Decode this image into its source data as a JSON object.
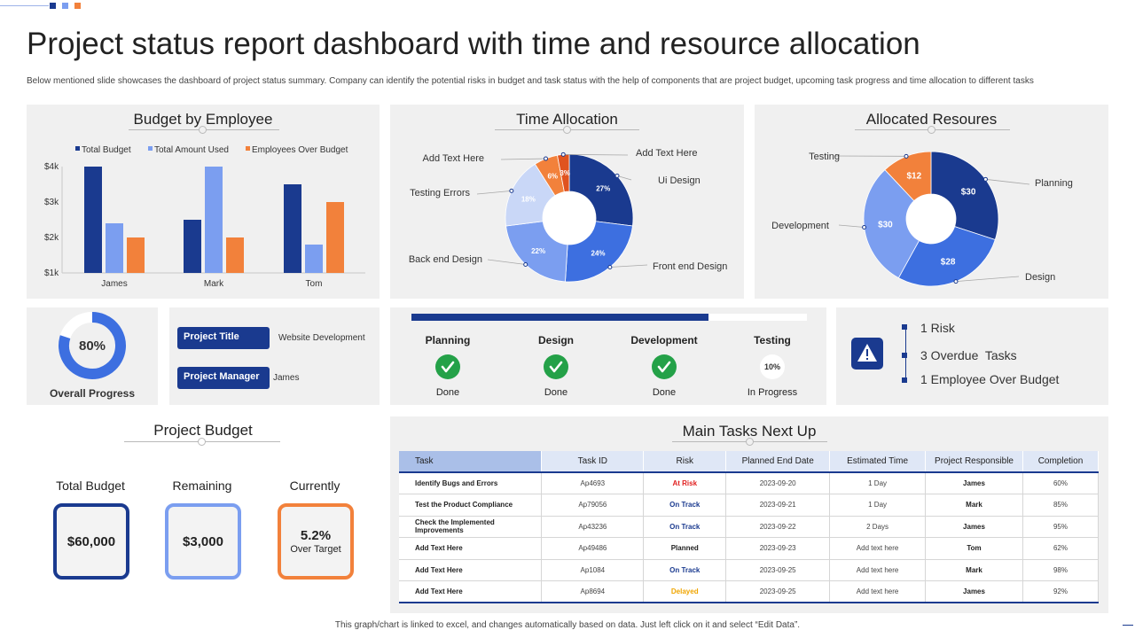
{
  "header": {
    "title": "Project status report dashboard with time and resource allocation",
    "description": "Below mentioned slide showcases the dashboard of project status summary. Company  can identify the potential risks in budget and task status with the help of components that are project budget, upcoming task progress and time  allocation to different tasks"
  },
  "colors": {
    "dark_blue": "#1a3a8f",
    "mid_blue": "#3d6fe0",
    "light_blue": "#7b9ef0",
    "pale_blue": "#c9d7f7",
    "orange": "#f2813b",
    "dark_orange": "#e0531f",
    "green": "#24a148",
    "red": "#e02020",
    "amber": "#f0a500"
  },
  "budget_by_employee": {
    "title": "Budget by Employee",
    "chart_data": {
      "type": "bar",
      "categories": [
        "James",
        "Mark",
        "Tom"
      ],
      "series": [
        {
          "name": "Total Budget",
          "values": [
            4.0,
            2.5,
            3.5
          ],
          "color": "#1a3a8f"
        },
        {
          "name": "Total Amount Used",
          "values": [
            2.4,
            4.0,
            1.8
          ],
          "color": "#7b9ef0"
        },
        {
          "name": "Employees Over Budget",
          "values": [
            2.0,
            2.0,
            3.0
          ],
          "color": "#f2813b"
        }
      ],
      "yticks": [
        "$4k",
        "$3k",
        "$2k",
        "$1k"
      ],
      "ytick_values": [
        4,
        3,
        2,
        1
      ],
      "ylim": [
        1,
        4
      ],
      "legend_position": "top"
    }
  },
  "time_allocation": {
    "title": "Time Allocation",
    "chart_data": {
      "type": "pie",
      "slices": [
        {
          "label": "Ui Design",
          "value": 27,
          "text": "27%",
          "color": "#1a3a8f"
        },
        {
          "label": "Front end Design",
          "value": 24,
          "text": "24%",
          "color": "#3d6fe0"
        },
        {
          "label": "Back end Design",
          "value": 22,
          "text": "22%",
          "color": "#7b9ef0"
        },
        {
          "label": "Testing Errors",
          "value": 18,
          "text": "18%",
          "color": "#c9d7f7"
        },
        {
          "label": "Add Text Here",
          "value": 6,
          "text": "6%",
          "color": "#f2813b"
        },
        {
          "label": "Add Text Here",
          "value": 3,
          "text": "3%",
          "color": "#e0531f"
        }
      ]
    }
  },
  "allocated_resources": {
    "title": "Allocated Resoures",
    "chart_data": {
      "type": "pie",
      "slices": [
        {
          "label": "Planning",
          "value": 30,
          "text": "$30",
          "color": "#1a3a8f"
        },
        {
          "label": "Design",
          "value": 28,
          "text": "$28",
          "color": "#3d6fe0"
        },
        {
          "label": "Development",
          "value": 30,
          "text": "$30",
          "color": "#7b9ef0"
        },
        {
          "label": "Testing",
          "value": 12,
          "text": "$12",
          "color": "#f2813b"
        }
      ]
    }
  },
  "overall_progress": {
    "label": "Overall Progress",
    "value_text": "80%",
    "value": 80
  },
  "project_info": {
    "title_label": "Project Title",
    "title_value": "Website Development",
    "manager_label": "Project Manager",
    "manager_value": "James"
  },
  "phases": {
    "progress": 0.75,
    "items": [
      {
        "label": "Planning",
        "status": "Done"
      },
      {
        "label": "Design",
        "status": "Done"
      },
      {
        "label": "Development",
        "status": "Done"
      },
      {
        "label": "Testing",
        "status": "In Progress",
        "badge": "10%"
      }
    ]
  },
  "alerts": [
    "1 Risk",
    "3 Overdue  Tasks",
    "1 Employee Over Budget"
  ],
  "project_budget": {
    "title": "Project Budget",
    "items": [
      {
        "label": "Total Budget",
        "value": "$60,000"
      },
      {
        "label": "Remaining",
        "value": "$3,000"
      },
      {
        "label": "Currently",
        "value": "5.2%",
        "sub": "Over Target"
      }
    ]
  },
  "main_tasks": {
    "title": "Main Tasks Next Up",
    "columns": [
      "Task",
      "Task ID",
      "Risk",
      "Planned End Date",
      "Estimated Time",
      "Project Responsible",
      "Completion"
    ],
    "rows": [
      [
        "Identify Bugs and Errors",
        "Ap4693",
        "At Risk",
        "2023-09-20",
        "1 Day",
        "James",
        "60%"
      ],
      [
        "Test the Product Compliance",
        "Ap79056",
        "On Track",
        "2023-09-21",
        "1 Day",
        "Mark",
        "85%"
      ],
      [
        "Check the Implemented Improvements",
        "Ap43236",
        "On Track",
        "2023-09-22",
        "2 Days",
        "James",
        "95%"
      ],
      [
        "Add Text Here",
        "Ap49486",
        "Planned",
        "2023-09-23",
        "Add text here",
        "Tom",
        "62%"
      ],
      [
        "Add Text Here",
        "Ap1084",
        "On Track",
        "2023-09-25",
        "Add text here",
        "Mark",
        "98%"
      ],
      [
        "Add Text Here",
        "Ap8694",
        "Delayed",
        "2023-09-25",
        "Add text here",
        "James",
        "92%"
      ]
    ]
  },
  "footer": "This graph/chart is linked to excel, and changes automatically based on data. Just left click on it and select “Edit Data”."
}
